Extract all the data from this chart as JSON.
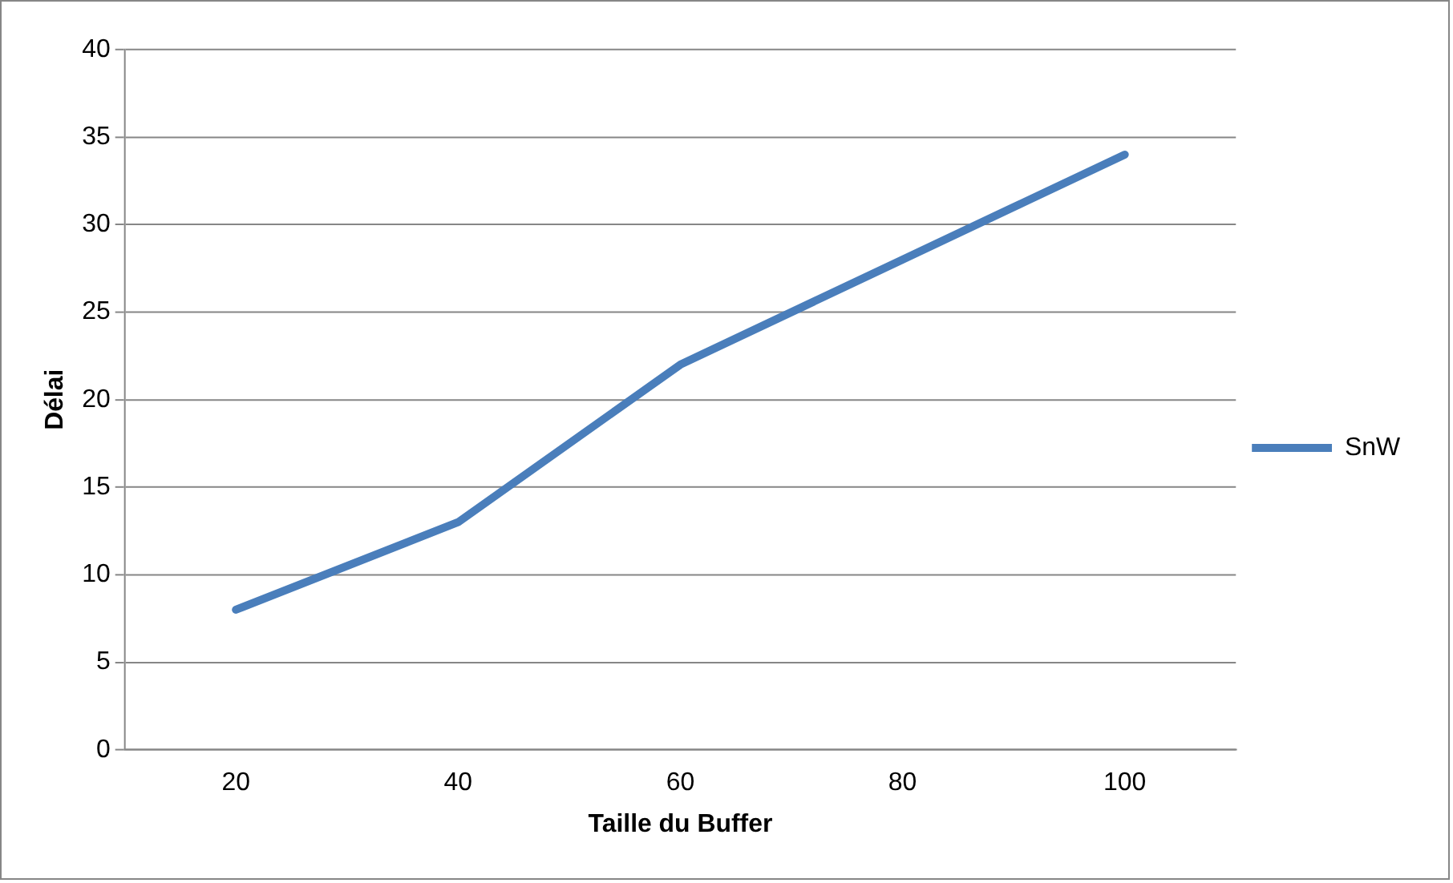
{
  "chart_data": {
    "type": "line",
    "xlabel": "Taille du Buffer",
    "ylabel": "Délai",
    "categories": [
      "20",
      "40",
      "60",
      "80",
      "100"
    ],
    "series": [
      {
        "name": "SnW",
        "color": "#4a7ebb",
        "values": [
          8,
          13,
          22,
          28,
          34
        ]
      }
    ],
    "ylim": [
      0,
      40
    ],
    "yticks": [
      0,
      5,
      10,
      15,
      20,
      25,
      30,
      35,
      40
    ],
    "grid": "y",
    "legend": "right",
    "marker": "none",
    "line_style": "solid"
  }
}
